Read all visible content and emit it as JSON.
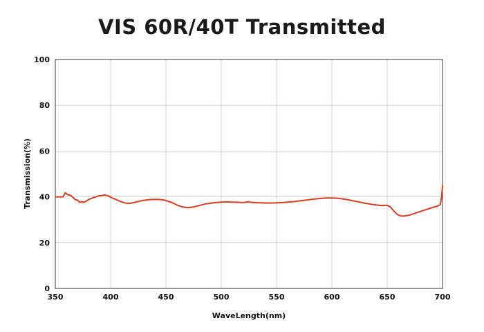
{
  "chart_data": {
    "type": "line",
    "title": "VIS 60R/40T Transmitted",
    "xlabel": "WaveLength(nm)",
    "ylabel": "Transmission(%)",
    "xlim": [
      350,
      700
    ],
    "ylim": [
      0,
      100
    ],
    "x_ticks": [
      350,
      400,
      450,
      500,
      550,
      600,
      650,
      700
    ],
    "y_ticks": [
      0,
      20,
      40,
      60,
      80,
      100
    ],
    "grid": true,
    "line_color": "#e03a1e",
    "series": [
      {
        "points": [
          [
            350,
            40.0
          ],
          [
            357,
            40.0
          ],
          [
            359,
            41.8
          ],
          [
            361,
            41.0
          ],
          [
            364,
            40.6
          ],
          [
            366,
            39.8
          ],
          [
            368,
            38.8
          ],
          [
            370,
            38.6
          ],
          [
            372,
            37.6
          ],
          [
            374,
            37.9
          ],
          [
            376,
            37.6
          ],
          [
            378,
            38.2
          ],
          [
            380,
            38.8
          ],
          [
            383,
            39.4
          ],
          [
            386,
            39.9
          ],
          [
            389,
            40.4
          ],
          [
            392,
            40.6
          ],
          [
            395,
            40.8
          ],
          [
            398,
            40.4
          ],
          [
            401,
            39.6
          ],
          [
            405,
            38.8
          ],
          [
            410,
            37.8
          ],
          [
            414,
            37.2
          ],
          [
            418,
            37.2
          ],
          [
            422,
            37.6
          ],
          [
            426,
            38.1
          ],
          [
            430,
            38.5
          ],
          [
            435,
            38.8
          ],
          [
            440,
            38.9
          ],
          [
            446,
            38.8
          ],
          [
            450,
            38.4
          ],
          [
            455,
            37.6
          ],
          [
            460,
            36.4
          ],
          [
            465,
            35.6
          ],
          [
            470,
            35.3
          ],
          [
            475,
            35.6
          ],
          [
            480,
            36.2
          ],
          [
            485,
            36.8
          ],
          [
            490,
            37.2
          ],
          [
            495,
            37.5
          ],
          [
            500,
            37.7
          ],
          [
            505,
            37.8
          ],
          [
            510,
            37.7
          ],
          [
            515,
            37.6
          ],
          [
            520,
            37.5
          ],
          [
            524,
            37.8
          ],
          [
            527,
            37.6
          ],
          [
            530,
            37.5
          ],
          [
            535,
            37.4
          ],
          [
            540,
            37.3
          ],
          [
            545,
            37.3
          ],
          [
            550,
            37.4
          ],
          [
            555,
            37.5
          ],
          [
            560,
            37.7
          ],
          [
            565,
            37.9
          ],
          [
            570,
            38.2
          ],
          [
            575,
            38.5
          ],
          [
            580,
            38.8
          ],
          [
            585,
            39.1
          ],
          [
            590,
            39.3
          ],
          [
            595,
            39.5
          ],
          [
            600,
            39.5
          ],
          [
            605,
            39.4
          ],
          [
            610,
            39.1
          ],
          [
            615,
            38.7
          ],
          [
            620,
            38.2
          ],
          [
            625,
            37.7
          ],
          [
            630,
            37.2
          ],
          [
            635,
            36.8
          ],
          [
            640,
            36.5
          ],
          [
            645,
            36.2
          ],
          [
            650,
            36.3
          ],
          [
            653,
            35.6
          ],
          [
            656,
            33.8
          ],
          [
            659,
            32.4
          ],
          [
            662,
            31.7
          ],
          [
            665,
            31.6
          ],
          [
            670,
            32.0
          ],
          [
            675,
            32.8
          ],
          [
            680,
            33.6
          ],
          [
            685,
            34.4
          ],
          [
            690,
            35.2
          ],
          [
            695,
            35.9
          ],
          [
            698,
            36.6
          ],
          [
            699.3,
            40.5
          ],
          [
            700,
            45.0
          ]
        ]
      }
    ]
  }
}
